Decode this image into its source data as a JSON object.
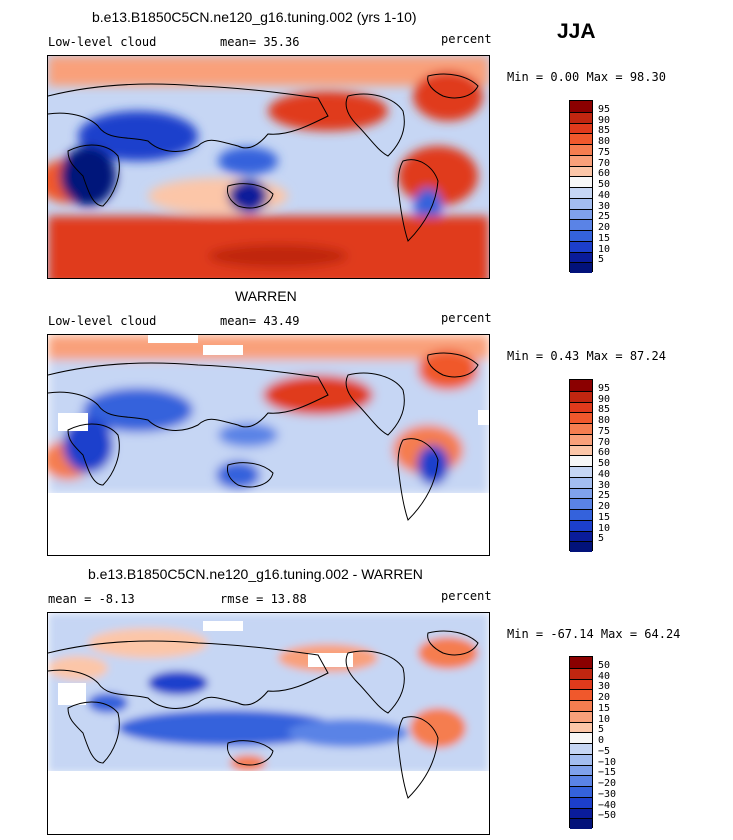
{
  "season": "JJA",
  "panels": [
    {
      "title": "b.e13.B1850C5CN.ne120_g16.tuning.002 (yrs 1-10)",
      "left_label": "Low-level cloud",
      "stat": "mean=  35.36",
      "units": "percent",
      "minmax": "Min =   0.00 Max =  98.30",
      "levels": [
        "95",
        "90",
        "85",
        "80",
        "75",
        "70",
        "60",
        "50",
        "40",
        "30",
        "25",
        "20",
        "15",
        "10",
        "5"
      ],
      "colors": [
        "#8b0000",
        "#c02610",
        "#e03a1c",
        "#f0582c",
        "#f57d50",
        "#f9a07a",
        "#fcc6a8",
        "#f7f7f7",
        "#c6d6f4",
        "#a3bdf0",
        "#7fa1ec",
        "#5a83e6",
        "#3462dc",
        "#1c3fcc",
        "#0a1c9a",
        "#02127a"
      ]
    },
    {
      "title": "WARREN",
      "left_label": "Low-level cloud",
      "stat": "mean=  43.49",
      "units": "percent",
      "minmax": "Min =   0.43 Max =  87.24",
      "levels": [
        "95",
        "90",
        "85",
        "80",
        "75",
        "70",
        "60",
        "50",
        "40",
        "30",
        "25",
        "20",
        "15",
        "10",
        "5"
      ],
      "colors": [
        "#8b0000",
        "#c02610",
        "#e03a1c",
        "#f0582c",
        "#f57d50",
        "#f9a07a",
        "#fcc6a8",
        "#f7f7f7",
        "#c6d6f4",
        "#a3bdf0",
        "#7fa1ec",
        "#5a83e6",
        "#3462dc",
        "#1c3fcc",
        "#0a1c9a",
        "#02127a"
      ]
    },
    {
      "title": "b.e13.B1850C5CN.ne120_g16.tuning.002 - WARREN",
      "left_label": "mean =   -8.13",
      "stat": "rmse =  13.88",
      "units": "percent",
      "minmax": "Min = -67.14 Max =  64.24",
      "levels": [
        "50",
        "40",
        "30",
        "20",
        "15",
        "10",
        "5",
        "0",
        "−5",
        "−10",
        "−15",
        "−20",
        "−30",
        "−40",
        "−50"
      ],
      "colors": [
        "#8b0000",
        "#c02610",
        "#e03a1c",
        "#f0582c",
        "#f57d50",
        "#f9a07a",
        "#fcc6a8",
        "#f7f7f7",
        "#c6d6f4",
        "#a3bdf0",
        "#7fa1ec",
        "#5a83e6",
        "#3462dc",
        "#1c3fcc",
        "#0a1c9a",
        "#02127a"
      ]
    }
  ]
}
